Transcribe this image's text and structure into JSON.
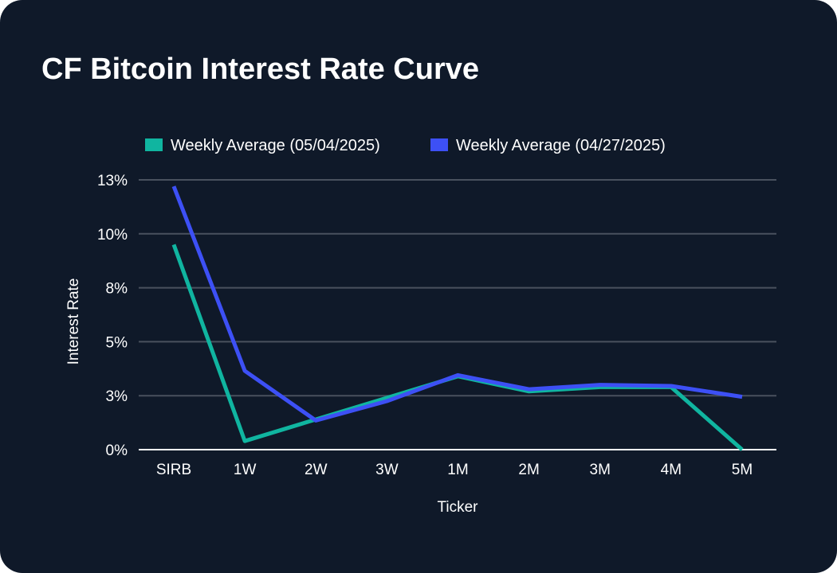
{
  "chart_data": {
    "type": "line",
    "title": "CF Bitcoin Interest Rate Curve",
    "xlabel": "Ticker",
    "ylabel": "Interest Rate",
    "categories": [
      "SIRB",
      "1W",
      "2W",
      "3W",
      "1M",
      "2M",
      "3M",
      "4M",
      "5M"
    ],
    "yticks": [
      {
        "value": 0,
        "label": "0%"
      },
      {
        "value": 2.5,
        "label": "3%"
      },
      {
        "value": 5,
        "label": "5%"
      },
      {
        "value": 7.5,
        "label": "8%"
      },
      {
        "value": 10,
        "label": "10%"
      },
      {
        "value": 12.5,
        "label": "13%"
      }
    ],
    "ylim": [
      0,
      12.5
    ],
    "grid": true,
    "legend_position": "top",
    "series": [
      {
        "name": "Weekly Average (05/04/2025)",
        "color": "#10b5a0",
        "values": [
          9.5,
          0.4,
          1.4,
          2.4,
          3.4,
          2.7,
          2.9,
          2.9,
          0.0
        ]
      },
      {
        "name": "Weekly Average (04/27/2025)",
        "color": "#3d50f5",
        "values": [
          12.2,
          3.65,
          1.35,
          2.25,
          3.45,
          2.8,
          3.0,
          2.95,
          2.45
        ]
      }
    ]
  }
}
